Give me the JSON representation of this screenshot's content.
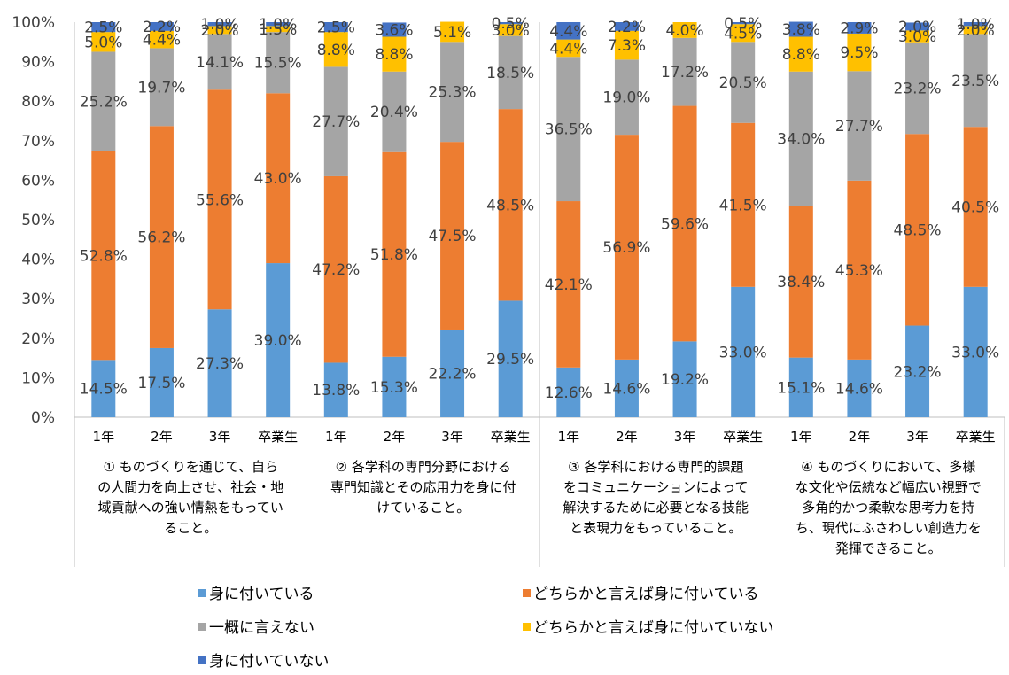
{
  "chart_data": {
    "type": "bar",
    "stacked": true,
    "percent": true,
    "ylim": [
      0,
      100
    ],
    "yticks": [
      "0%",
      "10%",
      "20%",
      "30%",
      "40%",
      "50%",
      "60%",
      "70%",
      "80%",
      "90%",
      "100%"
    ],
    "groups": [
      {
        "label_lines": [
          "① ものづくりを通じて、自ら",
          "の人間力を向上させ、社会・地",
          "域貢献への強い情熱をもってい",
          "ること。"
        ],
        "categories": [
          "1年",
          "2年",
          "3年",
          "卒業生"
        ]
      },
      {
        "label_lines": [
          "② 各学科の専門分野における",
          "専門知識とその応用力を身に付",
          "けていること。"
        ],
        "categories": [
          "1年",
          "2年",
          "3年",
          "卒業生"
        ]
      },
      {
        "label_lines": [
          "③ 各学科における専門的課題",
          "をコミュニケーションによって",
          "解決するために必要となる技能",
          "と表現力をもっていること。"
        ],
        "categories": [
          "1年",
          "2年",
          "3年",
          "卒業生"
        ]
      },
      {
        "label_lines": [
          "④ ものづくりにおいて、多様",
          "な文化や伝統など幅広い視野で",
          "多角的かつ柔軟な思考力を持",
          "ち、現代にふさわしい創造力を",
          "発揮できること。"
        ],
        "categories": [
          "1年",
          "2年",
          "3年",
          "卒業生"
        ]
      }
    ],
    "series": [
      {
        "name": "身に付いている",
        "color": "#5B9BD5",
        "values": [
          14.5,
          17.5,
          27.3,
          39.0,
          13.8,
          15.3,
          22.2,
          29.5,
          12.6,
          14.6,
          19.2,
          33.0,
          15.1,
          14.6,
          23.2,
          33.0
        ]
      },
      {
        "name": "どちらかと言えば身に付いている",
        "color": "#ED7D31",
        "values": [
          52.8,
          56.2,
          55.6,
          43.0,
          47.2,
          51.8,
          47.5,
          48.5,
          42.1,
          56.9,
          59.6,
          41.5,
          38.4,
          45.3,
          48.5,
          40.5
        ]
      },
      {
        "name": "一概に言えない",
        "color": "#A5A5A5",
        "values": [
          25.2,
          19.7,
          14.1,
          15.5,
          27.7,
          20.4,
          25.3,
          18.5,
          36.5,
          19.0,
          17.2,
          20.5,
          34.0,
          27.7,
          23.2,
          23.5
        ]
      },
      {
        "name": "どちらかと言えば身に付いていない",
        "color": "#FFC000",
        "values": [
          5.0,
          4.4,
          2.0,
          1.5,
          8.8,
          8.8,
          5.1,
          3.0,
          4.4,
          7.3,
          4.0,
          4.5,
          8.8,
          9.5,
          3.0,
          2.0
        ]
      },
      {
        "name": "身に付いていない",
        "color": "#4472C4",
        "values": [
          2.5,
          2.2,
          1.0,
          1.0,
          2.5,
          3.6,
          0.0,
          0.5,
          4.4,
          2.2,
          0.0,
          0.5,
          3.8,
          2.9,
          2.0,
          1.0
        ]
      }
    ],
    "data_labels": [
      [
        "14.5%",
        "17.5%",
        "27.3%",
        "39.0%",
        "13.8%",
        "15.3%",
        "22.2%",
        "29.5%",
        "12.6%",
        "14.6%",
        "19.2%",
        "33.0%",
        "15.1%",
        "14.6%",
        "23.2%",
        "33.0%"
      ],
      [
        "52.8%",
        "56.2%",
        "55.6%",
        "43.0%",
        "47.2%",
        "51.8%",
        "47.5%",
        "48.5%",
        "42.1%",
        "56.9%",
        "59.6%",
        "41.5%",
        "38.4%",
        "45.3%",
        "48.5%",
        "40.5%"
      ],
      [
        "25.2%",
        "19.7%",
        "14.1%",
        "15.5%",
        "27.7%",
        "20.4%",
        "25.3%",
        "18.5%",
        "36.5%",
        "19.0%",
        "17.2%",
        "20.5%",
        "34.0%",
        "27.7%",
        "23.2%",
        "23.5%"
      ],
      [
        "5.0%",
        "4.4%",
        "2.0%",
        "1.5%",
        "8.8%",
        "8.8%",
        "5.1%",
        "3.0%",
        "4.4%",
        "7.3%",
        "4.0%",
        "4.5%",
        "8.8%",
        "9.5%",
        "3.0%",
        "2.0%"
      ],
      [
        "2.5%",
        "2.2%",
        "1.0%",
        "1.0%",
        "2.5%",
        "3.6%",
        "",
        "0.5%",
        "4.4%",
        "2.2%",
        "",
        "0.5%",
        "3.8%",
        "2.9%",
        "2.0%",
        "1.0%"
      ]
    ],
    "legend": {
      "position": "bottom"
    }
  }
}
